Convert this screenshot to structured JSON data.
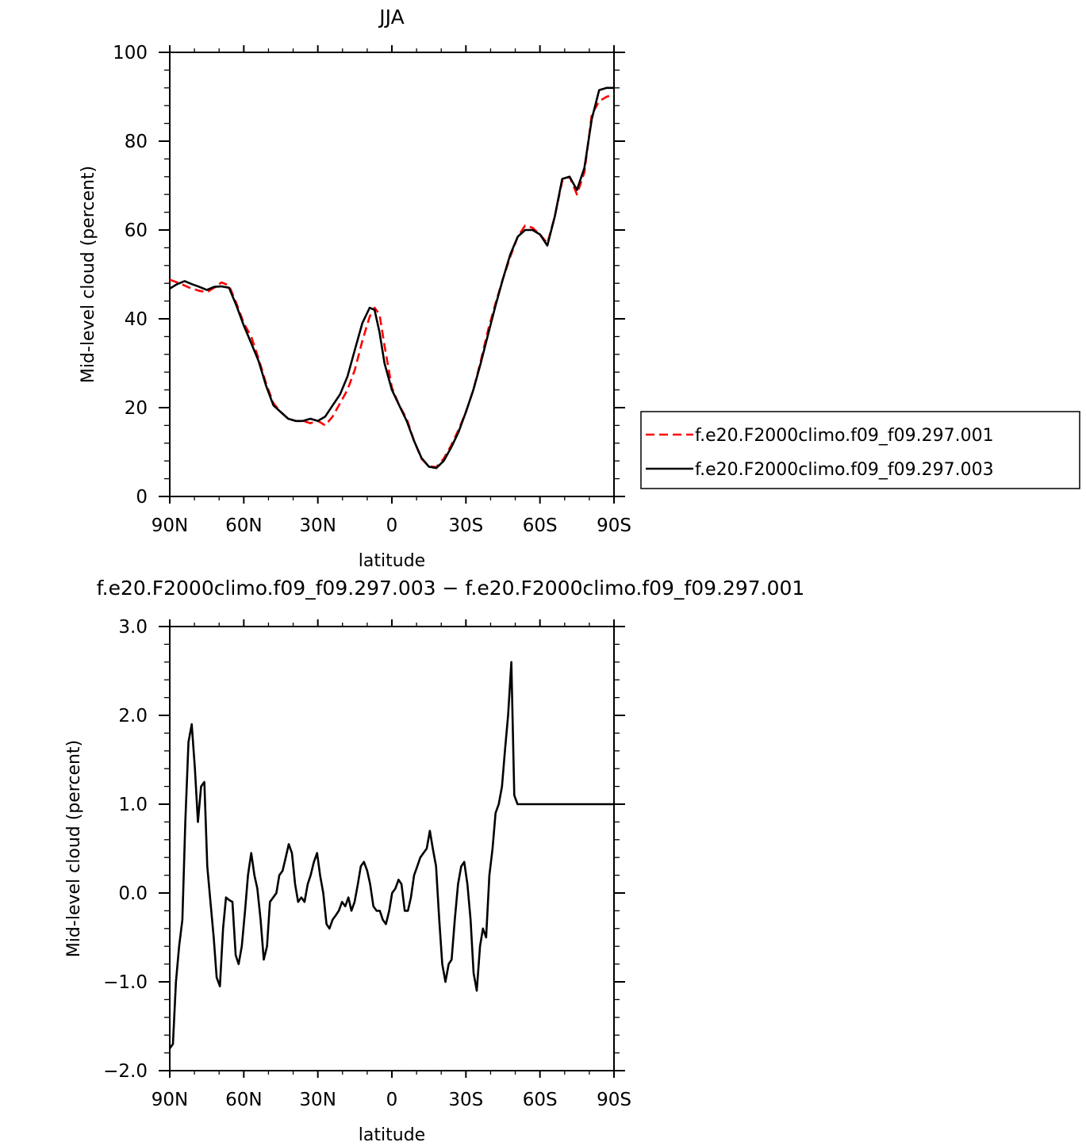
{
  "chart_data": [
    {
      "type": "line",
      "title": "JJA",
      "xlabel": "latitude",
      "ylabel": "Mid-level cloud (percent)",
      "xlim": [
        -90,
        90
      ],
      "ylim": [
        0,
        100
      ],
      "x_tick_values": [
        -90,
        -60,
        -30,
        0,
        30,
        60,
        90
      ],
      "x_tick_labels": [
        "90N",
        "60N",
        "30N",
        "0",
        "30S",
        "60S",
        "90S"
      ],
      "y_tick_values": [
        0,
        20,
        40,
        60,
        80,
        100
      ],
      "y_tick_labels": [
        "0",
        "20",
        "40",
        "60",
        "80",
        "100"
      ],
      "grid": false,
      "legend_placement": "right",
      "series": [
        {
          "name": "f.e20.F2000climo.f09_f09.297.001",
          "color": "#ff0000",
          "dash": "dashed",
          "x": [
            -90,
            -86,
            -82,
            -78,
            -75,
            -72,
            -69,
            -66,
            -63,
            -60,
            -57,
            -54,
            -51,
            -48,
            -45,
            -42,
            -39,
            -36,
            -33,
            -30,
            -27,
            -24,
            -21,
            -18,
            -15,
            -12,
            -9,
            -7,
            -5,
            -3,
            0,
            3,
            6,
            9,
            12,
            15,
            18,
            21,
            24,
            27,
            30,
            33,
            36,
            39,
            42,
            45,
            48,
            51,
            54,
            57,
            60,
            63,
            66,
            69,
            72,
            75,
            78,
            81,
            84,
            87,
            90
          ],
          "y": [
            48.8,
            48.0,
            47.0,
            46.3,
            46.0,
            47.0,
            48.2,
            47.5,
            43.5,
            39.0,
            36.0,
            31.0,
            25.5,
            21.0,
            19.0,
            17.5,
            17.0,
            17.0,
            16.5,
            17.0,
            16.0,
            18.0,
            21.0,
            24.0,
            28.5,
            35.0,
            40.5,
            42.5,
            41.0,
            34.0,
            24.5,
            20.5,
            17.5,
            12.5,
            8.5,
            6.8,
            6.6,
            8.5,
            11.5,
            15.0,
            19.0,
            24.0,
            30.5,
            37.5,
            43.5,
            49.0,
            54.0,
            58.5,
            61.0,
            60.5,
            59.0,
            57.0,
            63.0,
            71.0,
            72.0,
            68.0,
            73.0,
            86.0,
            89.0,
            90.0,
            90.5
          ]
        },
        {
          "name": "f.e20.F2000climo.f09_f09.297.003",
          "color": "#000000",
          "dash": "solid",
          "x": [
            -90,
            -87,
            -84,
            -81,
            -78,
            -75,
            -72,
            -69,
            -66,
            -63,
            -60,
            -57,
            -54,
            -51,
            -48,
            -45,
            -42,
            -39,
            -36,
            -33,
            -30,
            -27,
            -24,
            -21,
            -18,
            -15,
            -12,
            -9,
            -7,
            -5,
            -3,
            0,
            3,
            6,
            9,
            12,
            15,
            18,
            21,
            24,
            27,
            30,
            33,
            36,
            39,
            42,
            45,
            48,
            51,
            54,
            57,
            60,
            63,
            66,
            69,
            72,
            75,
            78,
            81,
            84,
            87,
            90
          ],
          "y": [
            46.8,
            47.8,
            48.5,
            47.8,
            47.2,
            46.5,
            47.2,
            47.3,
            47.0,
            43.0,
            38.5,
            34.5,
            30.5,
            25.0,
            20.5,
            19.0,
            17.5,
            17.0,
            17.0,
            17.5,
            17.0,
            18.0,
            20.5,
            23.0,
            27.0,
            33.0,
            39.0,
            42.5,
            42.0,
            37.0,
            30.0,
            24.0,
            20.5,
            17.0,
            12.5,
            8.7,
            6.7,
            6.4,
            8.0,
            11.0,
            14.5,
            19.0,
            24.0,
            30.0,
            36.5,
            43.0,
            49.0,
            54.5,
            58.5,
            60.0,
            60.0,
            59.0,
            56.5,
            63.0,
            71.5,
            72.0,
            69.0,
            74.0,
            85.0,
            91.5,
            92.0,
            92.0
          ]
        }
      ]
    },
    {
      "type": "line",
      "title": "f.e20.F2000climo.f09_f09.297.003 − f.e20.F2000climo.f09_f09.297.001",
      "xlabel": "latitude",
      "ylabel": "Mid-level cloud (percent)",
      "xlim": [
        -90,
        90
      ],
      "ylim": [
        -2.0,
        3.0
      ],
      "x_tick_values": [
        -90,
        -60,
        -30,
        0,
        30,
        60,
        90
      ],
      "x_tick_labels": [
        "90N",
        "60N",
        "30N",
        "0",
        "30S",
        "60S",
        "90S"
      ],
      "y_tick_values": [
        -2.0,
        -1.0,
        0.0,
        1.0,
        2.0,
        3.0
      ],
      "y_tick_labels": [
        "−2.0",
        "−1.0",
        "0.0",
        "1.0",
        "2.0",
        "3.0"
      ],
      "grid": false,
      "series": [
        {
          "color": "#000000",
          "dash": "solid",
          "x": [
            -90,
            -88.7,
            -87.5,
            -86.2,
            -84.9,
            -83.7,
            -82.4,
            -81.1,
            -79.8,
            -78.6,
            -77.3,
            -76,
            -74.8,
            -73.5,
            -72.2,
            -71,
            -69.7,
            -68.4,
            -67.2,
            -65.9,
            -64.6,
            -63.3,
            -62.1,
            -60.8,
            -59.5,
            -58.3,
            -57,
            -55.7,
            -54.5,
            -53.2,
            -51.9,
            -50.6,
            -49.4,
            -48.1,
            -46.8,
            -45.6,
            -44.3,
            -43,
            -41.8,
            -40.5,
            -39.2,
            -38,
            -36.7,
            -35.4,
            -34.1,
            -32.9,
            -31.6,
            -30.3,
            -29.1,
            -27.8,
            -26.5,
            -25.3,
            -24,
            -22.7,
            -21.5,
            -20.2,
            -18.9,
            -17.6,
            -16.4,
            -15.1,
            -13.8,
            -12.6,
            -11.3,
            -10,
            -8.8,
            -7.5,
            -6.2,
            -4.9,
            -3.7,
            -2.4,
            -1.1,
            0.1,
            1.4,
            2.7,
            3.9,
            5.2,
            6.5,
            7.7,
            9,
            10.3,
            11.5,
            12.8,
            14.1,
            15.4,
            16.6,
            17.9,
            19.2,
            20.4,
            21.7,
            23,
            24.2,
            25.5,
            26.8,
            28.1,
            29.3,
            30.6,
            31.9,
            33.1,
            34.4,
            35.7,
            36.9,
            38.2,
            39.5,
            40.8,
            42,
            43.3,
            44.6,
            45.8,
            47.1,
            48.4,
            49.6,
            50.9,
            52.2,
            53.5,
            54.7,
            56,
            57.3,
            58.5,
            59.8,
            61.1,
            62.3,
            63.6,
            64.9,
            66.1,
            67.4,
            68.7,
            70,
            71.2,
            72.5,
            73.8,
            75,
            76.3,
            77.6,
            78.8,
            80.1,
            81.4,
            82.7,
            83.9,
            85.2,
            86.5,
            87.7,
            89,
            90
          ],
          "y": [
            -1.75,
            -1.7,
            -1.0,
            -0.6,
            -0.3,
            0.8,
            1.7,
            1.9,
            1.4,
            0.8,
            1.2,
            1.25,
            0.3,
            -0.1,
            -0.5,
            -0.95,
            -1.05,
            -0.4,
            -0.05,
            -0.08,
            -0.1,
            -0.7,
            -0.8,
            -0.6,
            -0.2,
            0.2,
            0.45,
            0.2,
            0.05,
            -0.3,
            -0.75,
            -0.6,
            -0.1,
            -0.05,
            0.0,
            0.2,
            0.25,
            0.4,
            0.55,
            0.45,
            0.1,
            -0.1,
            -0.05,
            -0.1,
            0.1,
            0.2,
            0.35,
            0.45,
            0.2,
            0.0,
            -0.35,
            -0.4,
            -0.3,
            -0.25,
            -0.2,
            -0.1,
            -0.15,
            -0.05,
            -0.2,
            -0.1,
            0.1,
            0.3,
            0.35,
            0.25,
            0.1,
            -0.15,
            -0.2,
            -0.2,
            -0.3,
            -0.35,
            -0.2,
            0.0,
            0.05,
            0.15,
            0.1,
            -0.2,
            -0.2,
            -0.05,
            0.2,
            0.3,
            0.4,
            0.45,
            0.5,
            0.7,
            0.5,
            0.3,
            -0.3,
            -0.8,
            -1.0,
            -0.8,
            -0.75,
            -0.3,
            0.1,
            0.3,
            0.35,
            0.1,
            -0.3,
            -0.9,
            -1.1,
            -0.6,
            -0.4,
            -0.5,
            0.2,
            0.5,
            0.9,
            1.0,
            1.2,
            1.6,
            2.0,
            2.6,
            1.1,
            1.0,
            1.0,
            1.0,
            1.0,
            1.0,
            1.0,
            1.0,
            1.0,
            1.0,
            1.0,
            1.0,
            1.0,
            1.0,
            1.0,
            1.0,
            1.0,
            1.0,
            1.0,
            1.0,
            1.0,
            1.0,
            1.0,
            1.0,
            1.0,
            1.0,
            1.0,
            1.0,
            1.0,
            1.0,
            1.0,
            1.0,
            1.0
          ]
        }
      ]
    }
  ]
}
